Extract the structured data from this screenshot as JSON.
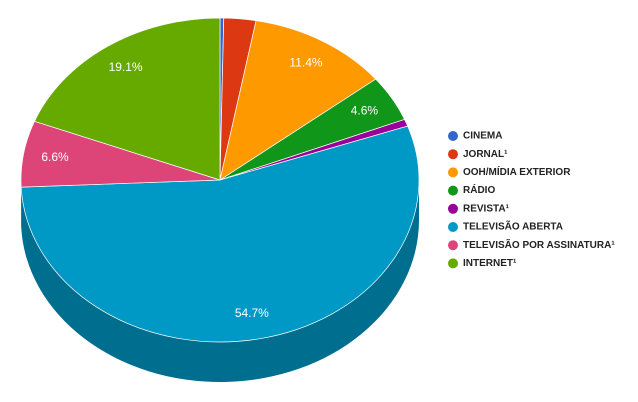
{
  "chart_data": {
    "type": "pie3d",
    "categories": [
      "CINEMA",
      "JORNAL¹",
      "OOH/MÍDIA EXTERIOR",
      "RÁDIO",
      "REVISTA¹",
      "TELEVISÃO ABERTA",
      "TELEVISÃO POR ASSINATURA¹",
      "INTERNET¹"
    ],
    "values": [
      0.3,
      2.6,
      11.4,
      4.6,
      0.7,
      54.7,
      6.6,
      19.1
    ],
    "value_labels": [
      null,
      null,
      "11.4%",
      "4.6%",
      null,
      "54.7%",
      "6.6%",
      "19.1%"
    ],
    "colors": [
      "#3366cc",
      "#dc3912",
      "#ff9900",
      "#109618",
      "#990099",
      "#0099c6",
      "#dd4477",
      "#66aa00"
    ],
    "legend": "right"
  }
}
